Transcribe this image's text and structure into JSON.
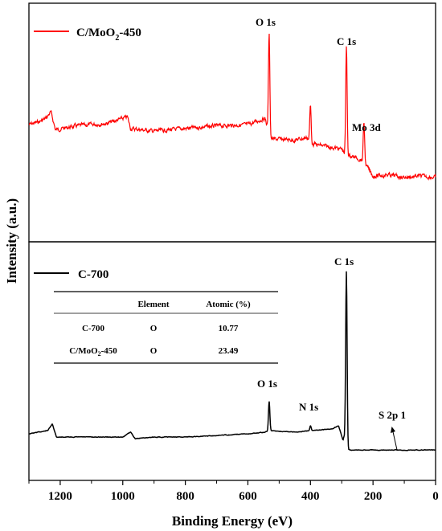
{
  "chart_data": [
    {
      "type": "line",
      "panel": "top",
      "series": [
        {
          "name": "C/MoO₂-450",
          "color": "#ff0000"
        }
      ],
      "legend_main": "C/MoO",
      "legend_sub": "2",
      "legend_tail": "-450",
      "legend_placement": "top-left",
      "x_range": [
        1300,
        0
      ],
      "x_reversed": true,
      "baseline_points": [
        [
          1300,
          0.28
        ],
        [
          1270,
          0.3
        ],
        [
          1245,
          0.33
        ],
        [
          1230,
          0.38
        ],
        [
          1215,
          0.24
        ],
        [
          1150,
          0.27
        ],
        [
          1050,
          0.29
        ],
        [
          985,
          0.34
        ],
        [
          975,
          0.25
        ],
        [
          900,
          0.23
        ],
        [
          800,
          0.25
        ],
        [
          700,
          0.27
        ],
        [
          600,
          0.28
        ],
        [
          545,
          0.33
        ],
        [
          528,
          0.17
        ],
        [
          450,
          0.16
        ],
        [
          410,
          0.18
        ],
        [
          395,
          0.13
        ],
        [
          300,
          0.09
        ],
        [
          287,
          0.05
        ],
        [
          240,
          0.01
        ],
        [
          226,
          -0.02
        ],
        [
          200,
          -0.12
        ],
        [
          150,
          -0.11
        ],
        [
          100,
          -0.13
        ],
        [
          50,
          -0.12
        ],
        [
          0,
          -0.13
        ]
      ],
      "peaks": [
        {
          "label": "O 1s",
          "x": 532,
          "y": 1.0
        },
        {
          "label": "",
          "x": 400,
          "y": 0.43
        },
        {
          "label": "C 1s",
          "x": 285,
          "y": 0.89
        },
        {
          "label": "Mo 3d",
          "x": 229,
          "y": 0.3
        }
      ]
    },
    {
      "type": "line",
      "panel": "bottom",
      "series": [
        {
          "name": "C-700",
          "color": "#000000"
        }
      ],
      "legend": "C-700",
      "legend_placement": "top-left",
      "x_range": [
        1300,
        0
      ],
      "x_reversed": true,
      "baseline_points": [
        [
          1300,
          0.0
        ],
        [
          1240,
          0.02
        ],
        [
          1225,
          0.06
        ],
        [
          1212,
          -0.02
        ],
        [
          1150,
          -0.02
        ],
        [
          1000,
          -0.02
        ],
        [
          975,
          0.01
        ],
        [
          960,
          -0.03
        ],
        [
          900,
          -0.02
        ],
        [
          800,
          -0.02
        ],
        [
          700,
          -0.01
        ],
        [
          600,
          0.0
        ],
        [
          545,
          0.01
        ],
        [
          532,
          0.02
        ],
        [
          450,
          0.01
        ],
        [
          400,
          0.02
        ],
        [
          330,
          0.03
        ],
        [
          310,
          0.05
        ],
        [
          296,
          -0.04
        ],
        [
          288,
          0.02
        ],
        [
          284,
          -0.09
        ],
        [
          270,
          -0.1
        ],
        [
          200,
          -0.1
        ],
        [
          100,
          -0.1
        ],
        [
          0,
          -0.1
        ]
      ],
      "peaks": [
        {
          "label": "O 1s",
          "x": 532,
          "y": 0.2
        },
        {
          "label": "N 1s",
          "x": 400,
          "y": 0.05
        },
        {
          "label": "C 1s",
          "x": 285,
          "y": 1.0
        },
        {
          "label": "S 2p 1",
          "x": 164,
          "y": -0.1
        }
      ]
    }
  ],
  "axes": {
    "xlabel": "Binding Energy (eV)",
    "ylabel": "Intensity (a.u.)",
    "x_ticks": [
      "1200",
      "1000",
      "800",
      "600",
      "400",
      "200",
      "0"
    ],
    "x_tick_values": [
      1200,
      1000,
      800,
      600,
      400,
      200,
      0
    ]
  },
  "labels": {
    "top_o1s": "O 1s",
    "top_c1s": "C 1s",
    "top_mo3d": "Mo 3d",
    "bot_o1s": "O 1s",
    "bot_n1s": "N 1s",
    "bot_c1s": "C 1s",
    "bot_s2p": "S 2p 1"
  },
  "table": {
    "headers": [
      "",
      "Element",
      "Atomic (%)"
    ],
    "rows": [
      {
        "sample": "C-700",
        "sample_sub": "",
        "sample_tail": "",
        "element": "O",
        "atomic": "10.77"
      },
      {
        "sample": "C/MoO",
        "sample_sub": "2",
        "sample_tail": "-450",
        "element": "O",
        "atomic": "23.49"
      }
    ]
  },
  "colors": {
    "red_series": "#ff0000",
    "black_series": "#000000",
    "axis": "#000000"
  }
}
